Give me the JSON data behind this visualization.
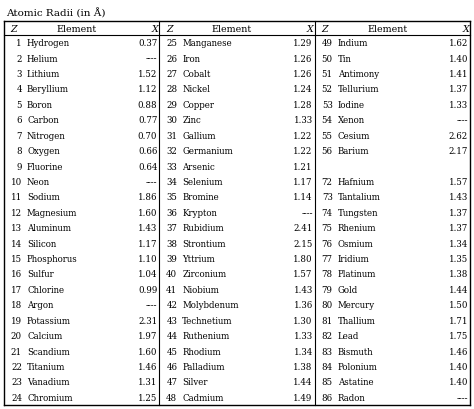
{
  "title": "Atomic Radii (in Å)",
  "col1": [
    [
      1,
      "Hydrogen",
      "0.37"
    ],
    [
      2,
      "Helium",
      "----"
    ],
    [
      3,
      "Lithium",
      "1.52"
    ],
    [
      4,
      "Beryllium",
      "1.12"
    ],
    [
      5,
      "Boron",
      "0.88"
    ],
    [
      6,
      "Carbon",
      "0.77"
    ],
    [
      7,
      "Nitrogen",
      "0.70"
    ],
    [
      8,
      "Oxygen",
      "0.66"
    ],
    [
      9,
      "Fluorine",
      "0.64"
    ],
    [
      10,
      "Neon",
      "----"
    ],
    [
      11,
      "Sodium",
      "1.86"
    ],
    [
      12,
      "Magnesium",
      "1.60"
    ],
    [
      13,
      "Aluminum",
      "1.43"
    ],
    [
      14,
      "Silicon",
      "1.17"
    ],
    [
      15,
      "Phosphorus",
      "1.10"
    ],
    [
      16,
      "Sulfur",
      "1.04"
    ],
    [
      17,
      "Chlorine",
      "0.99"
    ],
    [
      18,
      "Argon",
      "----"
    ],
    [
      19,
      "Potassium",
      "2.31"
    ],
    [
      20,
      "Calcium",
      "1.97"
    ],
    [
      21,
      "Scandium",
      "1.60"
    ],
    [
      22,
      "Titanium",
      "1.46"
    ],
    [
      23,
      "Vanadium",
      "1.31"
    ],
    [
      24,
      "Chromium",
      "1.25"
    ]
  ],
  "col2": [
    [
      25,
      "Manganese",
      "1.29"
    ],
    [
      26,
      "Iron",
      "1.26"
    ],
    [
      27,
      "Cobalt",
      "1.26"
    ],
    [
      28,
      "Nickel",
      "1.24"
    ],
    [
      29,
      "Copper",
      "1.28"
    ],
    [
      30,
      "Zinc",
      "1.33"
    ],
    [
      31,
      "Gallium",
      "1.22"
    ],
    [
      32,
      "Germanium",
      "1.22"
    ],
    [
      33,
      "Arsenic",
      "1.21"
    ],
    [
      34,
      "Selenium",
      "1.17"
    ],
    [
      35,
      "Bromine",
      "1.14"
    ],
    [
      36,
      "Krypton",
      "----"
    ],
    [
      37,
      "Rubidium",
      "2.41"
    ],
    [
      38,
      "Strontium",
      "2.15"
    ],
    [
      39,
      "Yttrium",
      "1.80"
    ],
    [
      40,
      "Zirconium",
      "1.57"
    ],
    [
      41,
      "Niobium",
      "1.43"
    ],
    [
      42,
      "Molybdenum",
      "1.36"
    ],
    [
      43,
      "Technetium",
      "1.30"
    ],
    [
      44,
      "Ruthenium",
      "1.33"
    ],
    [
      45,
      "Rhodium",
      "1.34"
    ],
    [
      46,
      "Palladium",
      "1.38"
    ],
    [
      47,
      "Silver",
      "1.44"
    ],
    [
      48,
      "Cadmium",
      "1.49"
    ]
  ],
  "col3": [
    [
      49,
      "Indium",
      "1.62"
    ],
    [
      50,
      "Tin",
      "1.40"
    ],
    [
      51,
      "Antimony",
      "1.41"
    ],
    [
      52,
      "Tellurium",
      "1.37"
    ],
    [
      53,
      "Iodine",
      "1.33"
    ],
    [
      54,
      "Xenon",
      "----"
    ],
    [
      55,
      "Cesium",
      "2.62"
    ],
    [
      56,
      "Barium",
      "2.17"
    ],
    [
      null,
      "",
      ""
    ],
    [
      72,
      "Hafnium",
      "1.57"
    ],
    [
      73,
      "Tantalium",
      "1.43"
    ],
    [
      74,
      "Tungsten",
      "1.37"
    ],
    [
      75,
      "Rhenium",
      "1.37"
    ],
    [
      76,
      "Osmium",
      "1.34"
    ],
    [
      77,
      "Iridium",
      "1.35"
    ],
    [
      78,
      "Platinum",
      "1.38"
    ],
    [
      79,
      "Gold",
      "1.44"
    ],
    [
      80,
      "Mercury",
      "1.50"
    ],
    [
      81,
      "Thallium",
      "1.71"
    ],
    [
      82,
      "Lead",
      "1.75"
    ],
    [
      83,
      "Bismuth",
      "1.46"
    ],
    [
      84,
      "Polonium",
      "1.40"
    ],
    [
      85,
      "Astatine",
      "1.40"
    ],
    [
      86,
      "Radon",
      "----"
    ]
  ],
  "bg_color": "#ffffff",
  "text_color": "#000000",
  "border_color": "#000000",
  "title_fontsize": 7.5,
  "header_fontsize": 6.8,
  "data_fontsize": 6.2
}
